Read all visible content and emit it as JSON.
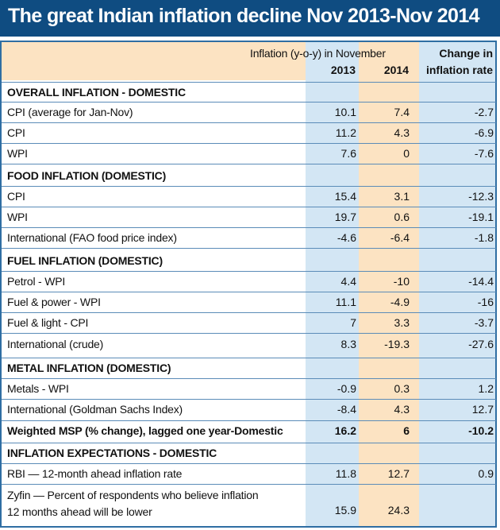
{
  "title": "The great Indian inflation decline Nov 2013-Nov 2014",
  "header": {
    "inflation_label": "Inflation (y-o-y) in November",
    "year_2013": "2013",
    "year_2014": "2014",
    "change_line1": "Change in",
    "change_line2": "inflation rate"
  },
  "rows": [
    {
      "type": "section",
      "label": "OVERALL INFLATION - DOMESTIC"
    },
    {
      "type": "data",
      "label": "CPI (average for Jan-Nov)",
      "v2013": "10.1",
      "v2014": "7.4",
      "change": "-2.7"
    },
    {
      "type": "data",
      "label": "CPI",
      "v2013": "11.2",
      "v2014": "4.3",
      "change": "-6.9"
    },
    {
      "type": "data",
      "label": "WPI",
      "v2013": "7.6",
      "v2014": "0",
      "change": "-7.6"
    },
    {
      "type": "section",
      "label": "FOOD INFLATION (DOMESTIC)"
    },
    {
      "type": "data",
      "label": "CPI",
      "v2013": "15.4",
      "v2014": "3.1",
      "change": "-12.3"
    },
    {
      "type": "data",
      "label": "WPI",
      "v2013": "19.7",
      "v2014": "0.6",
      "change": "-19.1"
    },
    {
      "type": "data",
      "label": "International (FAO food price index)",
      "v2013": "-4.6",
      "v2014": "-6.4",
      "change": "-1.8"
    },
    {
      "type": "section",
      "label": "FUEL INFLATION (DOMESTIC)"
    },
    {
      "type": "data",
      "label": "Petrol - WPI",
      "v2013": "4.4",
      "v2014": "-10",
      "change": "-14.4"
    },
    {
      "type": "data",
      "label": "Fuel & power - WPI",
      "v2013": "11.1",
      "v2014": "-4.9",
      "change": "-16"
    },
    {
      "type": "data",
      "label": "Fuel & light - CPI",
      "v2013": "7",
      "v2014": "3.3",
      "change": "-3.7"
    },
    {
      "type": "data",
      "label": "International (crude)",
      "v2013": "8.3",
      "v2014": "-19.3",
      "change": "-27.6"
    },
    {
      "type": "section",
      "label": "METAL INFLATION (DOMESTIC)"
    },
    {
      "type": "data",
      "label": "Metals - WPI",
      "v2013": "-0.9",
      "v2014": "0.3",
      "change": "1.2"
    },
    {
      "type": "data",
      "label": "International (Goldman Sachs Index)",
      "v2013": "-8.4",
      "v2014": "4.3",
      "change": "12.7"
    },
    {
      "type": "bold",
      "label": "Weighted MSP (% change), lagged one year-Domestic",
      "v2013": "16.2",
      "v2014": "6",
      "change": "-10.2"
    },
    {
      "type": "section",
      "label": "INFLATION EXPECTATIONS - DOMESTIC"
    },
    {
      "type": "data",
      "label": "RBI — 12-month ahead inflation rate",
      "v2013": "11.8",
      "v2014": "12.7",
      "change": "0.9"
    },
    {
      "type": "multi",
      "label_line1": "Zyfin — Percent of respondents who believe inflation",
      "label_line2": "12 months ahead will be lower",
      "v2013": "15.9",
      "v2014": "24.3",
      "change": ""
    }
  ]
}
